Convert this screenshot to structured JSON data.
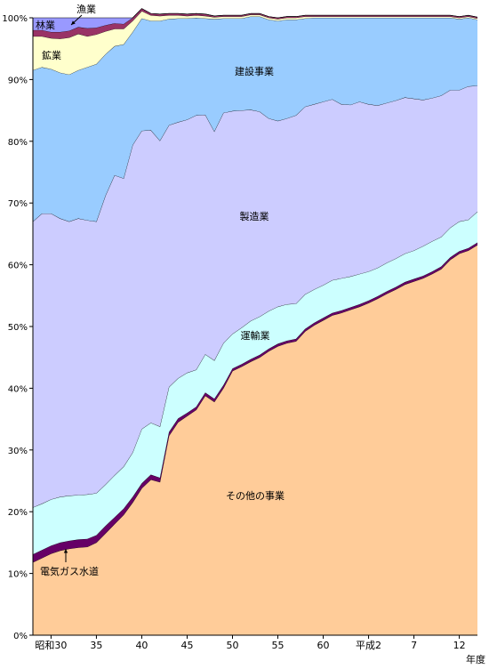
{
  "chart_data": {
    "type": "area",
    "stacked_percent": true,
    "ylim": [
      0,
      100
    ],
    "yticks": [
      "0%",
      "10%",
      "20%",
      "30%",
      "40%",
      "50%",
      "60%",
      "70%",
      "80%",
      "90%",
      "100%"
    ],
    "xticks": [
      {
        "year": 30,
        "label": "昭和30"
      },
      {
        "year": 35,
        "label": "35"
      },
      {
        "year": 40,
        "label": "40"
      },
      {
        "year": 45,
        "label": "45"
      },
      {
        "year": 50,
        "label": "50"
      },
      {
        "year": 55,
        "label": "55"
      },
      {
        "year": 60,
        "label": "60"
      },
      {
        "year": 65,
        "label": "平成2"
      },
      {
        "year": 70,
        "label": "7"
      },
      {
        "year": 75,
        "label": "12"
      }
    ],
    "xlabel": "年度",
    "x": [
      28,
      29,
      30,
      31,
      32,
      33,
      34,
      35,
      36,
      37,
      38,
      39,
      40,
      41,
      42,
      43,
      44,
      45,
      46,
      47,
      48,
      49,
      50,
      51,
      52,
      53,
      54,
      55,
      56,
      57,
      58,
      59,
      60,
      61,
      62,
      63,
      64,
      65,
      66,
      67,
      68,
      69,
      70,
      71,
      72,
      73,
      74,
      75,
      76,
      77
    ],
    "series": [
      {
        "name": "その他の事業",
        "color": "#ffcc99",
        "values": [
          11.8,
          12.5,
          13.2,
          13.7,
          14.0,
          14.2,
          14.3,
          15.0,
          16.5,
          18.0,
          19.5,
          21.5,
          23.8,
          25.2,
          24.8,
          32.3,
          34.5,
          35.5,
          36.5,
          38.8,
          37.8,
          40.0,
          42.8,
          43.5,
          44.3,
          45.0,
          46.0,
          46.8,
          47.3,
          47.6,
          49.2,
          50.2,
          51.0,
          51.8,
          52.2,
          52.7,
          53.2,
          53.8,
          54.5,
          55.3,
          56.0,
          56.8,
          57.3,
          57.8,
          58.5,
          59.3,
          60.8,
          61.8,
          62.3,
          63.2
        ]
      },
      {
        "name": "電気ガス水道",
        "color": "#660066",
        "values": [
          1.3,
          1.3,
          1.3,
          1.3,
          1.3,
          1.3,
          1.3,
          1.2,
          1.2,
          1.1,
          1.0,
          0.9,
          0.8,
          0.8,
          0.7,
          0.6,
          0.6,
          0.5,
          0.5,
          0.5,
          0.5,
          0.5,
          0.4,
          0.4,
          0.4,
          0.4,
          0.4,
          0.4,
          0.4,
          0.4,
          0.4,
          0.4,
          0.4,
          0.4,
          0.4,
          0.4,
          0.4,
          0.4,
          0.4,
          0.4,
          0.4,
          0.4,
          0.4,
          0.4,
          0.4,
          0.4,
          0.4,
          0.4,
          0.4,
          0.4
        ]
      },
      {
        "name": "運輸業",
        "color": "#ccffff",
        "values": [
          7.6,
          7.5,
          7.5,
          7.4,
          7.3,
          7.2,
          7.2,
          6.8,
          6.7,
          6.8,
          6.8,
          7.2,
          8.8,
          8.4,
          8.3,
          7.3,
          6.5,
          6.5,
          6.0,
          6.2,
          6.2,
          6.8,
          5.6,
          5.9,
          6.2,
          6.2,
          6.1,
          6.0,
          5.9,
          5.7,
          5.6,
          5.4,
          5.3,
          5.3,
          5.2,
          5.0,
          4.9,
          4.7,
          4.6,
          4.6,
          4.6,
          4.6,
          4.6,
          4.8,
          4.9,
          4.8,
          4.8,
          4.8,
          4.6,
          5.0
        ]
      },
      {
        "name": "製造業",
        "color": "#ccccff",
        "values": [
          46.3,
          47.0,
          46.3,
          45.1,
          44.4,
          44.8,
          44.4,
          44.0,
          46.8,
          48.6,
          46.7,
          49.8,
          48.3,
          47.4,
          46.3,
          42.4,
          41.5,
          41.0,
          41.2,
          38.8,
          37.1,
          37.3,
          36.1,
          35.2,
          34.2,
          33.2,
          31.2,
          30.1,
          30.1,
          30.5,
          30.4,
          30.0,
          29.7,
          29.3,
          28.2,
          27.8,
          27.9,
          27.1,
          26.3,
          25.9,
          25.6,
          25.3,
          24.6,
          23.7,
          23.2,
          22.9,
          22.3,
          21.3,
          21.6,
          20.4
        ]
      },
      {
        "name": "建設事業",
        "color": "#99ccff",
        "values": [
          24.5,
          23.7,
          23.4,
          23.6,
          23.8,
          24.0,
          24.8,
          25.5,
          22.9,
          20.9,
          21.7,
          18.3,
          18.2,
          17.7,
          19.4,
          17.2,
          16.8,
          16.4,
          15.8,
          15.6,
          18.2,
          15.3,
          15.0,
          14.9,
          15.1,
          15.4,
          16.0,
          16.2,
          16.0,
          15.5,
          14.3,
          14.0,
          13.6,
          13.2,
          14.0,
          14.1,
          13.6,
          14.0,
          14.2,
          13.8,
          13.4,
          12.9,
          13.1,
          13.3,
          13.0,
          12.6,
          11.7,
          11.5,
          11.1,
          10.7
        ]
      },
      {
        "name": "鉱業",
        "color": "#ffffcc",
        "values": [
          5.5,
          5.0,
          5.0,
          5.5,
          6.0,
          5.9,
          5.0,
          4.8,
          3.7,
          2.8,
          2.5,
          1.8,
          1.2,
          0.9,
          0.8,
          0.6,
          0.5,
          0.4,
          0.4,
          0.4,
          0.3,
          0.3,
          0.3,
          0.3,
          0.3,
          0.3,
          0.3,
          0.3,
          0.3,
          0.3,
          0.3,
          0.2,
          0.2,
          0.2,
          0.2,
          0.2,
          0.2,
          0.2,
          0.2,
          0.2,
          0.2,
          0.2,
          0.2,
          0.2,
          0.2,
          0.2,
          0.2,
          0.2,
          0.2,
          0.2
        ]
      },
      {
        "name": "林業",
        "color": "#993366",
        "values": [
          1.0,
          1.0,
          1.0,
          1.1,
          1.1,
          1.1,
          1.3,
          1.1,
          1.0,
          0.9,
          0.8,
          0.5,
          0.4,
          0.3,
          0.3,
          0.3,
          0.3,
          0.3,
          0.3,
          0.3,
          0.2,
          0.2,
          0.2,
          0.2,
          0.2,
          0.2,
          0.2,
          0.2,
          0.2,
          0.2,
          0.2,
          0.2,
          0.2,
          0.2,
          0.2,
          0.2,
          0.2,
          0.2,
          0.2,
          0.2,
          0.2,
          0.2,
          0.2,
          0.2,
          0.2,
          0.2,
          0.2,
          0.2,
          0.2,
          0.2
        ]
      },
      {
        "name": "漁業",
        "color": "#9999ff",
        "values": [
          2.0,
          2.0,
          2.3,
          2.3,
          2.1,
          1.5,
          1.7,
          1.6,
          1.2,
          0.9,
          1.0,
          0.0,
          0.0,
          0.0,
          0.0,
          0.0,
          0.0,
          0.0,
          0.0,
          0.0,
          0.0,
          0.0,
          0.0,
          0.0,
          0.0,
          0.0,
          0.0,
          0.0,
          0.0,
          0.0,
          0.0,
          0.0,
          0.0,
          0.0,
          0.0,
          0.0,
          0.0,
          0.0,
          0.0,
          0.0,
          0.0,
          0.0,
          0.0,
          0.0,
          0.0,
          0.0,
          0.0,
          0.0,
          0.0,
          0.0
        ]
      }
    ],
    "annotations": [
      {
        "text": "漁業"
      },
      {
        "text": "林業"
      },
      {
        "text": "鉱業"
      },
      {
        "text": "建設事業"
      },
      {
        "text": "製造業"
      },
      {
        "text": "運輸業"
      },
      {
        "text": "その他の事業"
      },
      {
        "text": "電気ガス水道"
      }
    ]
  }
}
